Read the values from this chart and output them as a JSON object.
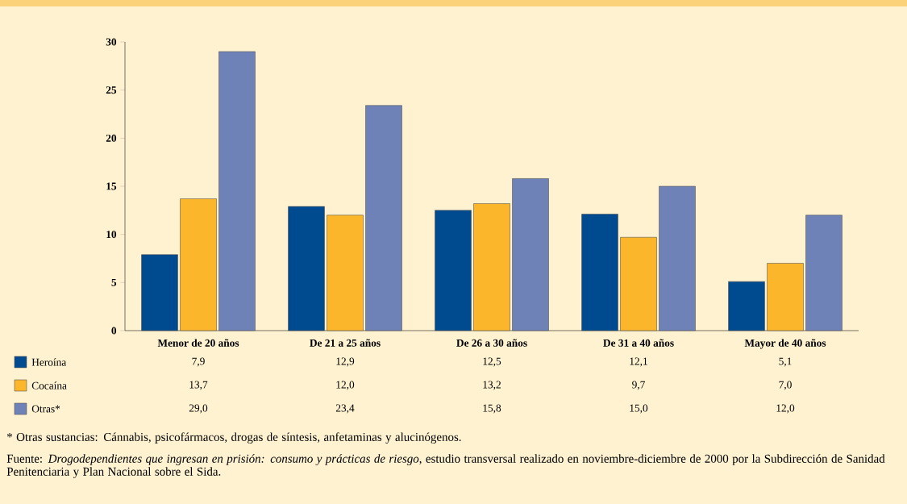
{
  "chart_data": {
    "type": "bar",
    "categories": [
      "Menor de 20 años",
      "De 21 a 25 años",
      "De 26 a 30 años",
      "De 31 a 40 años",
      "Mayor de 40 años"
    ],
    "series": [
      {
        "name": "Heroína",
        "color": "#004a8f",
        "values": [
          7.9,
          12.9,
          12.5,
          12.1,
          5.1
        ],
        "value_labels": [
          "7,9",
          "12,9",
          "12,5",
          "12,1",
          "5,1"
        ]
      },
      {
        "name": "Cocaína",
        "color": "#fbb62b",
        "values": [
          13.7,
          12.0,
          13.2,
          9.7,
          7.0
        ],
        "value_labels": [
          "13,7",
          "12,0",
          "13,2",
          "9,7",
          "7,0"
        ]
      },
      {
        "name": "Otras*",
        "color": "#6e82b8",
        "values": [
          29.0,
          23.4,
          15.8,
          15.0,
          12.0
        ],
        "value_labels": [
          "29,0",
          "23,4",
          "15,8",
          "15,0",
          "12,0"
        ]
      }
    ],
    "ylim": [
      0,
      30
    ],
    "yticks": [
      0,
      5,
      10,
      15,
      20,
      25,
      30
    ],
    "grid": false,
    "legend": "bottom left",
    "annotations": [
      "* Otras sustancias: Cánnabis, psicofármacos, drogas de síntesis, anfetaminas y alucinógenos.",
      "Fuente: *Drogodependientes que ingresan en prisión: consumo y prácticas de riesgo,* estudio transversal realizado en noviembre-diciembre de 2000 por la Subdirección de Sanidad Penitenciaria y Plan Nacional sobre el Sida."
    ]
  }
}
